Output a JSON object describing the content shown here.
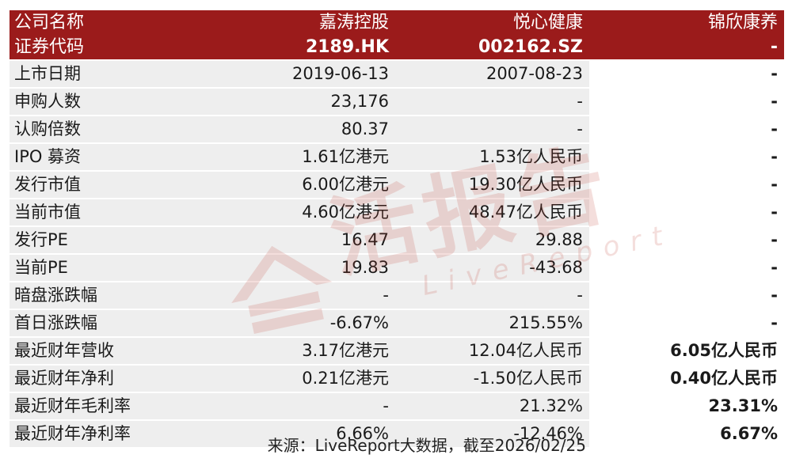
{
  "header": {
    "row1": {
      "label": "公司名称",
      "c1": "嘉涛控股",
      "c2": "悦心健康",
      "c3": "锦欣康养"
    },
    "row2": {
      "label": "证券代码",
      "c1": "2189.HK",
      "c2": "002162.SZ",
      "c3": "-"
    }
  },
  "rows": [
    {
      "label": "上市日期",
      "c1": "2019-06-13",
      "c2": "2007-08-23",
      "c3": "-"
    },
    {
      "label": "申购人数",
      "c1": "23,176",
      "c2": "-",
      "c3": "-"
    },
    {
      "label": "认购倍数",
      "c1": "80.37",
      "c2": "-",
      "c3": "-"
    },
    {
      "label": "IPO 募资",
      "c1": "1.61亿港元",
      "c2": "1.53亿人民币",
      "c3": "-"
    },
    {
      "label": "发行市值",
      "c1": "6.00亿港元",
      "c2": "19.30亿人民币",
      "c3": "-"
    },
    {
      "label": "当前市值",
      "c1": "4.60亿港元",
      "c2": "48.47亿人民币",
      "c3": "-"
    },
    {
      "label": "发行PE",
      "c1": "16.47",
      "c2": "29.88",
      "c3": "-"
    },
    {
      "label": "当前PE",
      "c1": "19.83",
      "c2": "-43.68",
      "c3": "-"
    },
    {
      "label": "暗盘涨跌幅",
      "c1": "-",
      "c2": "-",
      "c3": "-"
    },
    {
      "label": "首日涨跌幅",
      "c1": "-6.67%",
      "c2": "215.55%",
      "c3": "-"
    },
    {
      "label": "最近财年营收",
      "c1": "3.17亿港元",
      "c2": "12.04亿人民币",
      "c3": "6.05亿人民币"
    },
    {
      "label": "最近财年净利",
      "c1": "0.21亿港元",
      "c2": "-1.50亿人民币",
      "c3": "0.40亿人民币"
    },
    {
      "label": "最近财年毛利率",
      "c1": "-",
      "c2": "21.32%",
      "c3": "23.31%"
    },
    {
      "label": "最近财年净利率",
      "c1": "6.66%",
      "c2": "-12.46%",
      "c3": "6.67%"
    }
  ],
  "source": "来源：LiveReport大数据，截至2026/02/25",
  "watermark": {
    "main": "活报告",
    "sub": "LiveReport"
  },
  "colors": {
    "header_bg": "#9b1b1b",
    "row_bg": "#eeeeee",
    "watermark": "#c0392b"
  }
}
